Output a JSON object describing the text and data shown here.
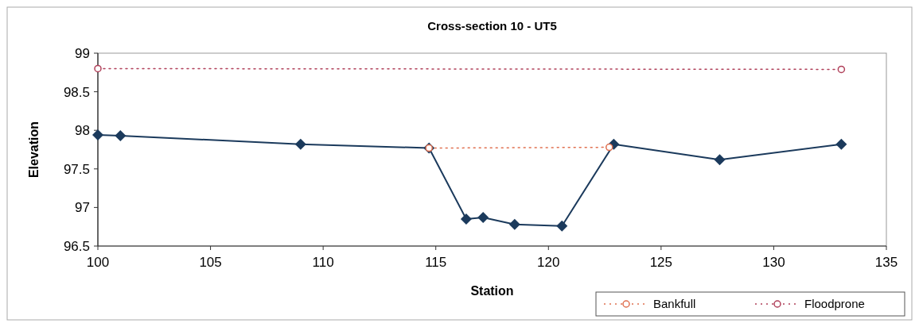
{
  "chart_data": {
    "type": "line",
    "title": "Cross-section 10 - UT5",
    "xlabel": "Station",
    "ylabel": "Elevation",
    "xlim": [
      100,
      135
    ],
    "xticks": [
      100,
      105,
      110,
      115,
      120,
      125,
      130,
      135
    ],
    "ylim": [
      96.5,
      99
    ],
    "yticks": [
      96.5,
      97,
      97.5,
      98,
      98.5,
      99
    ],
    "grid": false,
    "legend": "bottom right",
    "series": [
      {
        "color": "#1b3a5c",
        "marker": "diamond",
        "line_style": "solid",
        "x": [
          100,
          101,
          109,
          114.7,
          116.35,
          117.1,
          118.5,
          120.6,
          122.9,
          127.6,
          133
        ],
        "values": [
          97.94,
          97.93,
          97.82,
          97.77,
          96.85,
          96.87,
          96.78,
          96.76,
          97.82,
          97.62,
          97.82
        ]
      },
      {
        "name": "Bankfull",
        "color": "#e07050",
        "marker": "circle",
        "line_style": "dotted",
        "x": [
          114.7,
          122.7
        ],
        "values": [
          97.77,
          97.78
        ]
      },
      {
        "name": "Floodprone",
        "color": "#b0405a",
        "marker": "circle",
        "line_style": "dotted",
        "x": [
          100,
          133
        ],
        "values": [
          98.8,
          98.79
        ]
      }
    ]
  }
}
